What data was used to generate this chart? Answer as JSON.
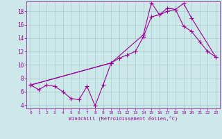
{
  "xlabel": "Windchill (Refroidissement éolien,°C)",
  "line_color": "#990099",
  "bg_color": "#cce8e8",
  "grid_color": "#aacccc",
  "line_width": 0.8,
  "marker": "+",
  "marker_size": 4,
  "xlim": [
    -0.5,
    23.5
  ],
  "ylim": [
    3.5,
    19.5
  ],
  "yticks": [
    4,
    6,
    8,
    10,
    12,
    14,
    16,
    18
  ],
  "xticks": [
    0,
    1,
    2,
    3,
    4,
    5,
    6,
    7,
    8,
    9,
    10,
    11,
    12,
    13,
    14,
    15,
    16,
    17,
    18,
    19,
    20,
    21,
    22,
    23
  ],
  "series": {
    "s1_x": [
      0,
      1,
      2,
      3,
      4,
      5,
      6,
      7,
      8,
      9,
      10
    ],
    "s1_y": [
      7.0,
      6.3,
      7.0,
      6.8,
      6.0,
      5.0,
      4.8,
      6.8,
      3.9,
      7.0,
      10.3
    ],
    "s2_x": [
      0,
      10,
      11,
      12,
      13,
      14,
      15,
      16,
      17,
      18,
      19,
      20,
      21,
      22,
      23
    ],
    "s2_y": [
      7.0,
      10.3,
      11.0,
      11.5,
      12.0,
      14.2,
      17.2,
      17.5,
      18.0,
      18.3,
      15.8,
      15.0,
      13.5,
      12.0,
      11.2
    ],
    "s3_x": [
      0,
      10,
      14,
      15,
      16,
      17,
      18,
      19,
      20,
      23
    ],
    "s3_y": [
      7.0,
      10.3,
      14.5,
      19.3,
      17.5,
      18.5,
      18.3,
      19.2,
      17.0,
      11.2
    ]
  }
}
